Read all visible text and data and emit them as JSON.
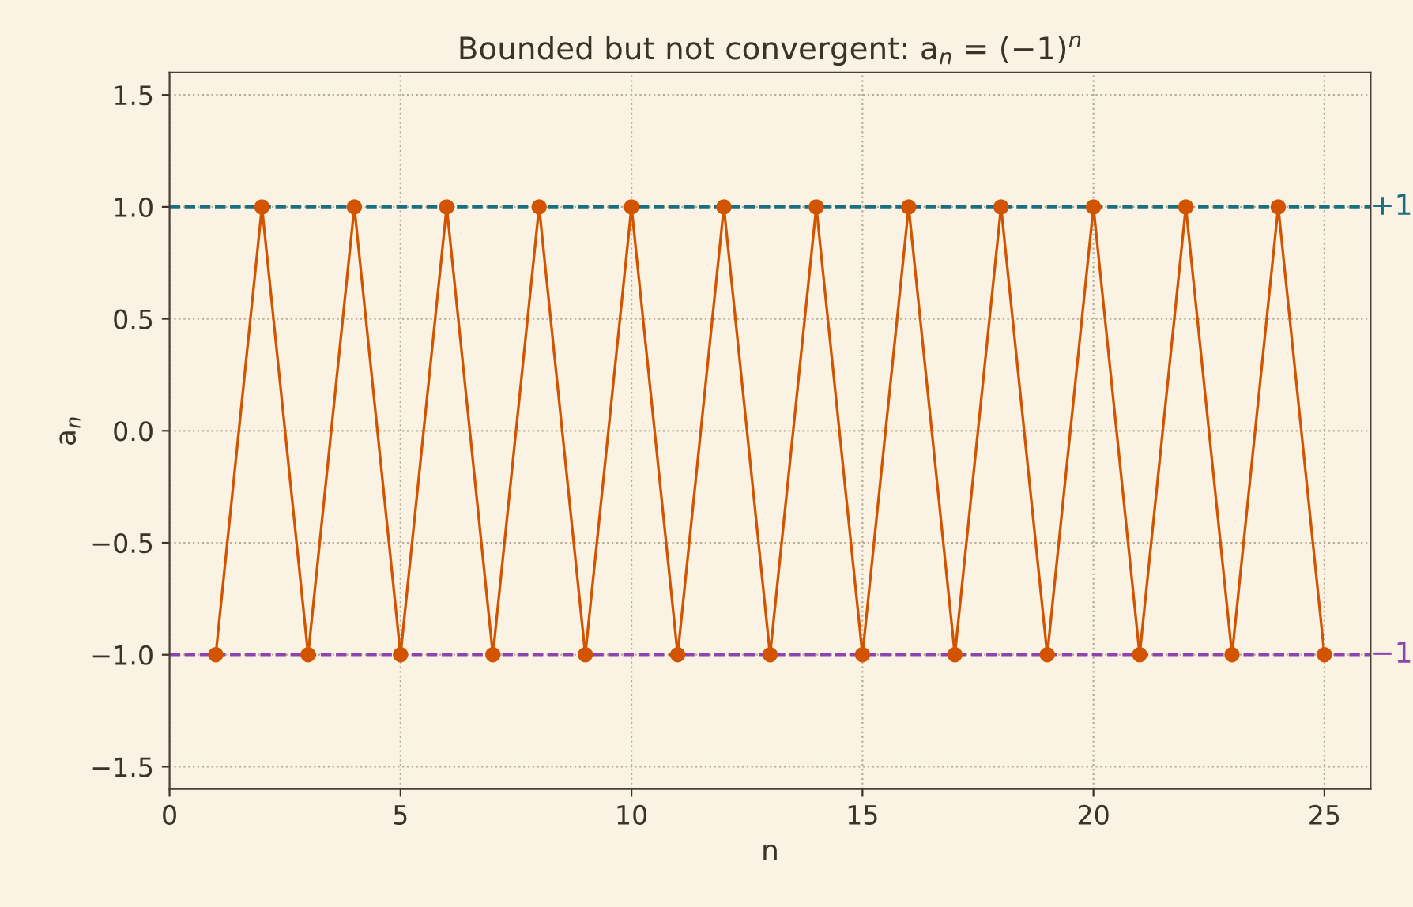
{
  "chart_data": {
    "type": "line",
    "title": "Bounded but not convergent: a$_{n}$ = (−1)$^{n}$",
    "xlabel": "n",
    "ylabel": "a$_{n}$",
    "x": [
      1,
      2,
      3,
      4,
      5,
      6,
      7,
      8,
      9,
      10,
      11,
      12,
      13,
      14,
      15,
      16,
      17,
      18,
      19,
      20,
      21,
      22,
      23,
      24,
      25
    ],
    "series": [
      {
        "color": "#d35400",
        "values": [
          -1,
          1,
          -1,
          1,
          -1,
          1,
          -1,
          1,
          -1,
          1,
          -1,
          1,
          -1,
          1,
          -1,
          1,
          -1,
          1,
          -1,
          1,
          -1,
          1,
          -1,
          1,
          -1
        ]
      }
    ],
    "xlim": [
      0,
      26
    ],
    "xticks": [
      0,
      5,
      10,
      15,
      20,
      25
    ],
    "ylim": [
      -1.6,
      1.6
    ],
    "yticks": [
      {
        "value": -1.5,
        "label": "−1.5"
      },
      {
        "value": -1.0,
        "label": "−1.0"
      },
      {
        "value": -0.5,
        "label": "−0.5"
      },
      {
        "value": 0.0,
        "label": "0.0"
      },
      {
        "value": 0.5,
        "label": "0.5"
      },
      {
        "value": 1.0,
        "label": "1.0"
      },
      {
        "value": 1.5,
        "label": "1.5"
      }
    ],
    "ref_lines": [
      {
        "axis": "y",
        "value": 1,
        "label": "+1",
        "color": "#1b6e7e",
        "line_style": "dashed"
      },
      {
        "axis": "y",
        "value": -1,
        "label": "−1",
        "color": "#8e44ad",
        "line_style": "dashed"
      }
    ],
    "grid": true,
    "marker": "circle",
    "line_style": "solid"
  }
}
